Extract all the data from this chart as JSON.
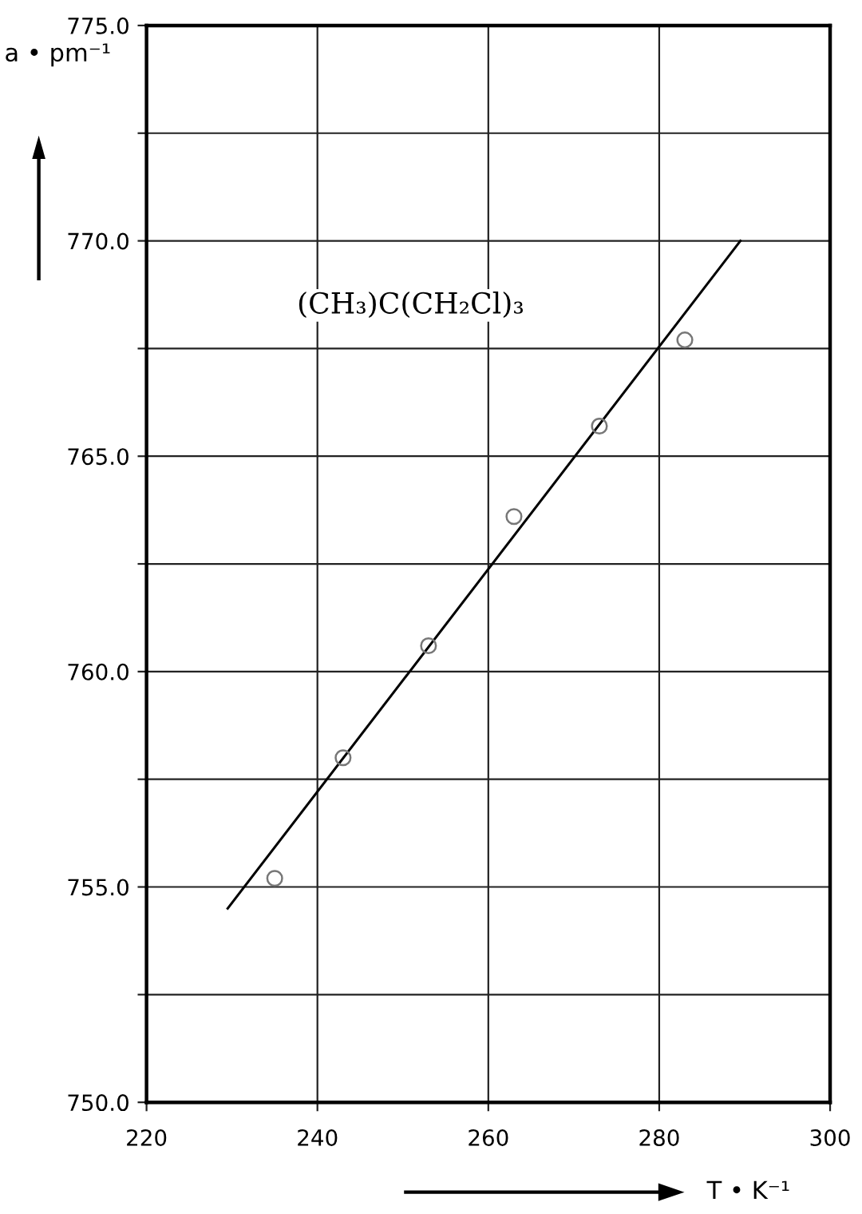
{
  "chart_data": {
    "type": "scatter",
    "xlabel": "T • K⁻¹",
    "ylabel": "a • pm⁻¹",
    "annotations": [
      "(CH₃)C(CH₂Cl)₃"
    ],
    "xlim": [
      220,
      300
    ],
    "xticks": [
      220,
      240,
      260,
      280,
      300
    ],
    "ylim": [
      750,
      775
    ],
    "yticks": [
      {
        "value": 750,
        "label": "750.0"
      },
      {
        "value": 752.5,
        "label": null
      },
      {
        "value": 755,
        "label": "755.0"
      },
      {
        "value": 757.5,
        "label": null
      },
      {
        "value": 760,
        "label": "760.0"
      },
      {
        "value": 762.5,
        "label": null
      },
      {
        "value": 765,
        "label": "765.0"
      },
      {
        "value": 767.5,
        "label": null
      },
      {
        "value": 770,
        "label": "770.0"
      },
      {
        "value": 772.5,
        "label": null
      },
      {
        "value": 775,
        "label": "775.0"
      }
    ],
    "grid": true,
    "series": [
      {
        "marker": "circle",
        "color": "#777777",
        "x": [
          235,
          243,
          253,
          263,
          273,
          283
        ],
        "values": [
          755.2,
          758.0,
          760.6,
          763.6,
          765.7,
          767.7
        ]
      },
      {
        "type": "line",
        "color": "#000000",
        "x": [
          229.5,
          289.5
        ],
        "values": [
          754.5,
          770.0
        ],
        "line_style": "solid",
        "marker": "none"
      }
    ]
  }
}
